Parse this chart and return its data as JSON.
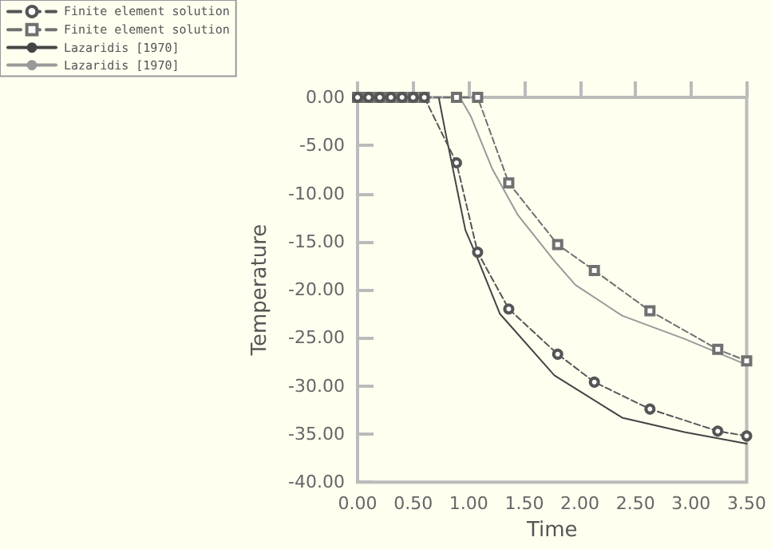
{
  "chart_data": {
    "type": "line",
    "xlabel": "Time",
    "ylabel": "Temperature",
    "xlim": [
      0,
      3.5
    ],
    "ylim": [
      -40,
      0
    ],
    "xticks": [
      {
        "value": 0,
        "label": "0.00"
      },
      {
        "value": 0.5,
        "label": "0.50"
      },
      {
        "value": 1,
        "label": "1.00"
      },
      {
        "value": 1.5,
        "label": "1.50"
      },
      {
        "value": 2,
        "label": "2.00"
      },
      {
        "value": 2.5,
        "label": "2.50"
      },
      {
        "value": 3,
        "label": "3.00"
      },
      {
        "value": 3.5,
        "label": "3.50"
      }
    ],
    "yticks": [
      {
        "value": -40,
        "label": "-40.00"
      },
      {
        "value": -35,
        "label": "-35.00"
      },
      {
        "value": -30,
        "label": "-30.00"
      },
      {
        "value": -25,
        "label": "-25.00"
      },
      {
        "value": -20,
        "label": "-20.00"
      },
      {
        "value": -15,
        "label": "-15.00"
      },
      {
        "value": -10,
        "label": "-10.00"
      },
      {
        "value": -5,
        "label": "-5.00"
      },
      {
        "value": 0,
        "label": "0.00"
      }
    ],
    "grid": false,
    "legend": "top left",
    "series": [
      {
        "name": "Finite element solution",
        "color": "#555555",
        "marker": "circle",
        "line_style": "dashed",
        "x": [
          0,
          0.1,
          0.2,
          0.3,
          0.4,
          0.5,
          0.6,
          0.89,
          1.08,
          1.36,
          1.8,
          2.13,
          2.63,
          3.24,
          3.5
        ],
        "values": [
          0,
          0,
          0,
          0,
          0,
          0,
          0,
          -6.8,
          -16.1,
          -22.0,
          -26.7,
          -29.6,
          -32.4,
          -34.7,
          -35.2
        ]
      },
      {
        "name": "Finite element solution",
        "color": "#707070",
        "marker": "square",
        "line_style": "dashed",
        "x": [
          0,
          0.1,
          0.2,
          0.3,
          0.4,
          0.5,
          0.6,
          0.89,
          1.08,
          1.36,
          1.8,
          2.13,
          2.63,
          3.24,
          3.5
        ],
        "values": [
          0,
          0,
          0,
          0,
          0,
          0,
          0,
          0,
          0,
          -8.9,
          -15.3,
          -18.0,
          -22.2,
          -26.2,
          -27.4
        ]
      },
      {
        "name": "Lazaridis [1970]",
        "color": "#444444",
        "marker": "none",
        "line_style": "solid",
        "x": [
          0.73,
          0.79,
          0.97,
          1.07,
          1.28,
          1.77,
          2.38,
          2.94,
          3.5
        ],
        "values": [
          0,
          -3.6,
          -13.8,
          -16.5,
          -22.5,
          -28.9,
          -33.3,
          -34.8,
          -36.0
        ]
      },
      {
        "name": "Lazaridis [1970]",
        "color": "#999999",
        "marker": "none",
        "line_style": "solid",
        "x": [
          0.92,
          1.02,
          1.21,
          1.44,
          1.77,
          1.96,
          2.38,
          2.94,
          3.5
        ],
        "values": [
          0,
          -2.0,
          -7.4,
          -12.2,
          -17.0,
          -19.5,
          -22.7,
          -25.1,
          -27.8
        ]
      }
    ]
  }
}
